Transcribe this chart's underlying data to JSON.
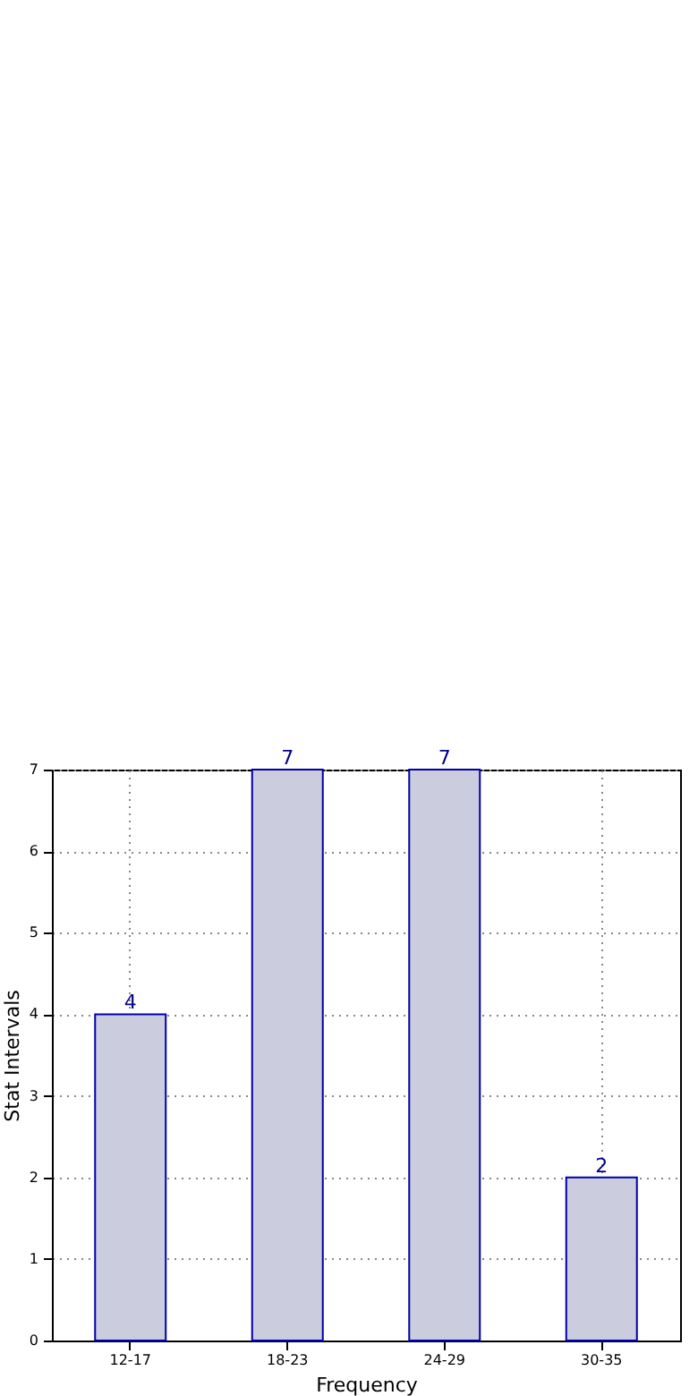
{
  "chart_data": {
    "type": "bar",
    "xlabel": "Frequency",
    "ylabel": "Stat Intervals",
    "categories": [
      "12-17",
      "18-23",
      "24-29",
      "30-35"
    ],
    "values": [
      4,
      7,
      7,
      2
    ],
    "color": "#ccccdf",
    "ylim": [
      0,
      7
    ],
    "yticks": [
      0,
      1,
      2,
      3,
      4,
      5,
      6,
      7
    ],
    "grid": true,
    "data_labels": true
  }
}
